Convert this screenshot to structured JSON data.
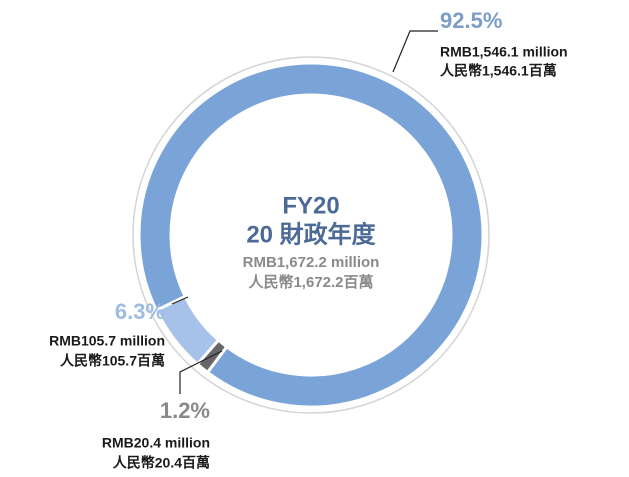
{
  "chart_data": {
    "type": "pie",
    "donut": true,
    "values": [
      92.5,
      6.3,
      1.2
    ],
    "value_labels": [
      "92.5%",
      "6.3%",
      "1.2%"
    ],
    "colors": [
      "#7aa3d8",
      "#a6c2e8",
      "#666666"
    ],
    "label_colors": [
      "#7b9dc8",
      "#9ebbe2",
      "#8a8a8a"
    ],
    "amount_labels_en": [
      "RMB1,546.1 million",
      "RMB105.7 million",
      "RMB20.4 million"
    ],
    "amount_labels_zh": [
      "人民幣1,546.1百萬",
      "人民幣105.7百萬",
      "人民幣20.4百萬"
    ],
    "center_text": [
      "FY20",
      "20 財政年度",
      "RMB1,672.2 million",
      "人民幣1,672.2百萬"
    ]
  }
}
